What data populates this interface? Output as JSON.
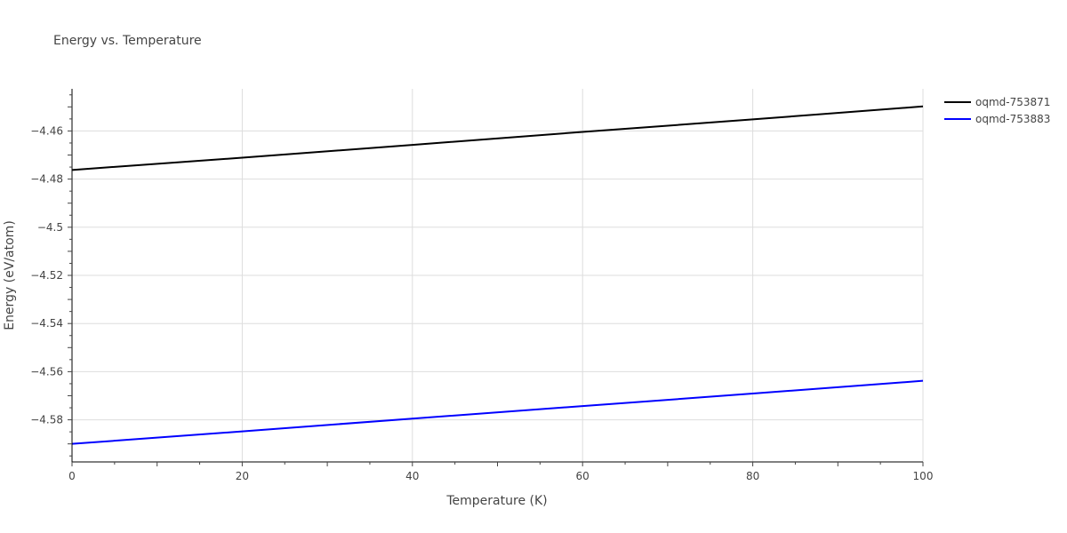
{
  "chart_data": {
    "type": "line",
    "title": "Energy vs. Temperature",
    "xlabel": "Temperature (K)",
    "ylabel": "Energy (eV/atom)",
    "xlim": [
      0,
      100
    ],
    "ylim": [
      -4.5975,
      -4.4425
    ],
    "x_ticks": [
      0,
      20,
      40,
      60,
      80,
      100
    ],
    "x_tick_labels": [
      "0",
      "20",
      "40",
      "60",
      "80",
      "100"
    ],
    "y_ticks": [
      -4.46,
      -4.48,
      -4.5,
      -4.52,
      -4.54,
      -4.56,
      -4.58
    ],
    "y_tick_labels": [
      "−4.46",
      "−4.48",
      "−4.5",
      "−4.52",
      "−4.54",
      "−4.56",
      "−4.58"
    ],
    "grid": true,
    "legend_position": "top-right",
    "series": [
      {
        "name": "oqmd-753871",
        "color": "#000000",
        "x": [
          0,
          20,
          40,
          60,
          80,
          100
        ],
        "y": [
          -4.4762,
          -4.4711,
          -4.4658,
          -4.4604,
          -4.4552,
          -4.4498
        ]
      },
      {
        "name": "oqmd-753883",
        "color": "#0000ff",
        "x": [
          0,
          20,
          40,
          60,
          80,
          100
        ],
        "y": [
          -4.59,
          -4.5848,
          -4.5795,
          -4.5743,
          -4.5691,
          -4.5638
        ]
      }
    ]
  }
}
